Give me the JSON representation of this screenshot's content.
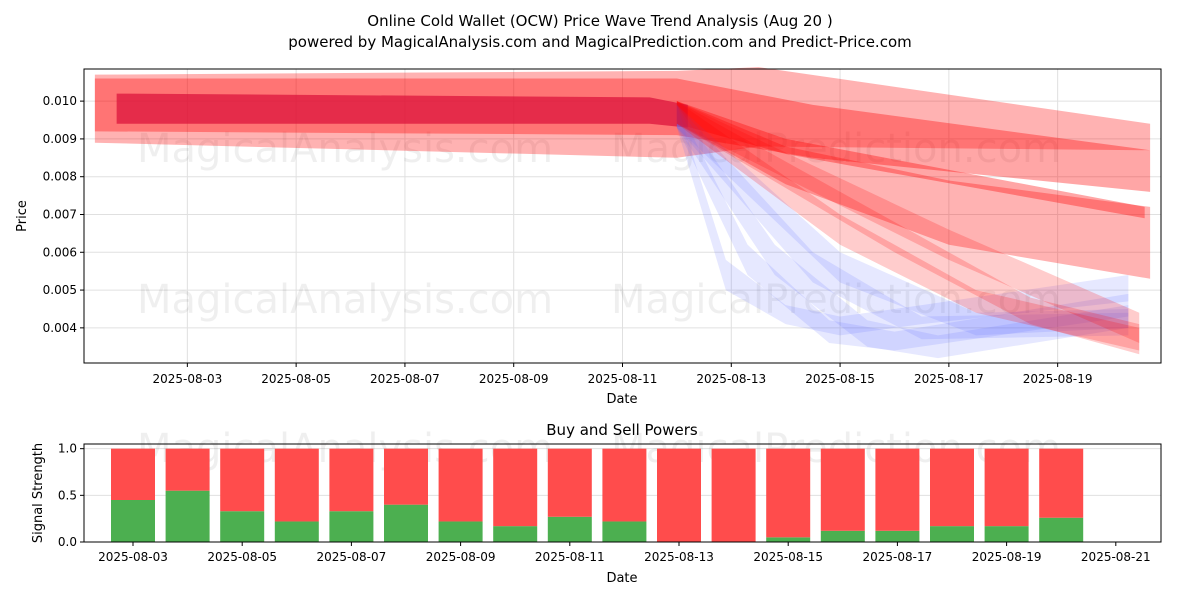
{
  "chart_data": [
    {
      "type": "area",
      "title": "Online Cold Wallet (OCW) Price Wave Trend Analysis (Aug 20 )",
      "subtitle": "powered by MagicalAnalysis.com and MagicalPrediction.com and Predict-Price.com",
      "xlabel": "Date",
      "ylabel": "Price",
      "xlim_day_of_aug": [
        1.1,
        20.9
      ],
      "ylim": [
        0.00307,
        0.01085
      ],
      "xticks": [
        "2025-08-03",
        "2025-08-05",
        "2025-08-07",
        "2025-08-09",
        "2025-08-11",
        "2025-08-13",
        "2025-08-15",
        "2025-08-17",
        "2025-08-19"
      ],
      "yticks": [
        "0.004",
        "0.005",
        "0.006",
        "0.007",
        "0.008",
        "0.009",
        "0.010"
      ],
      "grid": true,
      "watermarks": [
        "MagicalAnalysis.com",
        "MagicalPrediction.com"
      ],
      "bands_note": "each point is [day of Aug 2025, upper price, lower price]",
      "series": [
        {
          "name": "red-wide-top",
          "color": "#ff0000",
          "opacity": 0.3,
          "points": [
            [
              1.3,
              0.0107,
              0.0089
            ],
            [
              12,
              0.0108,
              0.0085
            ],
            [
              13.5,
              0.0109,
              0.0088
            ],
            [
              20.7,
              0.0094,
              0.0087
            ]
          ]
        },
        {
          "name": "red-mid",
          "color": "#ff0000",
          "opacity": 0.35,
          "points": [
            [
              1.3,
              0.0106,
              0.0092
            ],
            [
              12,
              0.0106,
              0.0091
            ],
            [
              14.5,
              0.0099,
              0.0085
            ],
            [
              20.7,
              0.0087,
              0.0076
            ]
          ]
        },
        {
          "name": "red-thin",
          "color": "#ff0000",
          "opacity": 0.35,
          "points": [
            [
              12,
              0.01,
              0.0094
            ],
            [
              14,
              0.009,
              0.0086
            ],
            [
              20.6,
              0.0072,
              0.0069
            ]
          ]
        },
        {
          "name": "red-wide-low",
          "color": "#ff0000",
          "opacity": 0.3,
          "points": [
            [
              12,
              0.01,
              0.0094
            ],
            [
              14,
              0.0088,
              0.0078
            ],
            [
              17,
              0.0079,
              0.0062
            ],
            [
              20.7,
              0.0072,
              0.0053
            ]
          ]
        },
        {
          "name": "red-core",
          "color": "#dc143c",
          "opacity": 0.75,
          "points": [
            [
              1.7,
              0.0102,
              0.0094
            ],
            [
              11.5,
              0.0101,
              0.0094
            ],
            [
              12.2,
              0.0099,
              0.0093
            ]
          ]
        },
        {
          "name": "blue-1",
          "color": "#5a64ff",
          "opacity": 0.15,
          "points": [
            [
              12,
              0.0099,
              0.0093
            ],
            [
              12.9,
              0.0058,
              0.005
            ],
            [
              14,
              0.0046,
              0.0041
            ],
            [
              15,
              0.0043,
              0.0038
            ],
            [
              16.5,
              0.0046,
              0.0041
            ],
            [
              20.3,
              0.0054,
              0.0047
            ]
          ]
        },
        {
          "name": "blue-2",
          "color": "#5a64ff",
          "opacity": 0.15,
          "points": [
            [
              12,
              0.0099,
              0.0093
            ],
            [
              13.3,
              0.0062,
              0.0054
            ],
            [
              14.8,
              0.0042,
              0.0036
            ],
            [
              16,
              0.0039,
              0.0034
            ],
            [
              20.3,
              0.0049,
              0.0043
            ]
          ]
        },
        {
          "name": "blue-3",
          "color": "#5a64ff",
          "opacity": 0.15,
          "points": [
            [
              12,
              0.0099,
              0.0093
            ],
            [
              13.8,
              0.0062,
              0.0054
            ],
            [
              15.5,
              0.0042,
              0.0035
            ],
            [
              16.8,
              0.0038,
              0.0032
            ],
            [
              20.3,
              0.0046,
              0.004
            ]
          ]
        },
        {
          "name": "blue-4",
          "color": "#5a64ff",
          "opacity": 0.15,
          "points": [
            [
              12,
              0.0099,
              0.0093
            ],
            [
              14.5,
              0.006,
              0.0052
            ],
            [
              16.5,
              0.0043,
              0.0037
            ],
            [
              20.3,
              0.0044,
              0.0038
            ]
          ]
        },
        {
          "name": "blue-5",
          "color": "#5a64ff",
          "opacity": 0.15,
          "points": [
            [
              12,
              0.0099,
              0.0093
            ],
            [
              15,
              0.006,
              0.0052
            ],
            [
              17.5,
              0.0044,
              0.0038
            ],
            [
              20.3,
              0.0045,
              0.004
            ]
          ]
        },
        {
          "name": "red-fan-1",
          "color": "#ff0000",
          "opacity": 0.2,
          "points": [
            [
              12,
              0.01,
              0.0094
            ],
            [
              15,
              0.007,
              0.0062
            ],
            [
              17.5,
              0.005,
              0.0044
            ],
            [
              20.5,
              0.004,
              0.0034
            ]
          ]
        },
        {
          "name": "red-fan-2",
          "color": "#ff0000",
          "opacity": 0.2,
          "points": [
            [
              12,
              0.01,
              0.0094
            ],
            [
              16,
              0.0068,
              0.006
            ],
            [
              18.5,
              0.0048,
              0.0041
            ],
            [
              20.5,
              0.0041,
              0.0033
            ]
          ]
        },
        {
          "name": "red-fan-3",
          "color": "#ff0000",
          "opacity": 0.2,
          "points": [
            [
              12,
              0.01,
              0.0094
            ],
            [
              17,
              0.0066,
              0.0058
            ],
            [
              20.5,
              0.0044,
              0.0036
            ]
          ]
        }
      ]
    },
    {
      "type": "bar",
      "title": "Buy and Sell Powers",
      "xlabel": "Date",
      "ylabel": "Signal Strength",
      "ylim": [
        0,
        1.05
      ],
      "yticks": [
        "0.0",
        "0.5",
        "1.0"
      ],
      "xticks": [
        "2025-08-03",
        "2025-08-05",
        "2025-08-07",
        "2025-08-09",
        "2025-08-11",
        "2025-08-13",
        "2025-08-15",
        "2025-08-17",
        "2025-08-19",
        "2025-08-21"
      ],
      "categories_day_of_aug": [
        3,
        4,
        5,
        6,
        7,
        8,
        9,
        10,
        11,
        12,
        13,
        14,
        15,
        16,
        17,
        18,
        19,
        20
      ],
      "series": [
        {
          "name": "Buy",
          "color": "#4caf50",
          "values": [
            0.45,
            0.55,
            0.33,
            0.22,
            0.33,
            0.4,
            0.22,
            0.17,
            0.27,
            0.22,
            0.0,
            0.0,
            0.05,
            0.12,
            0.12,
            0.17,
            0.17,
            0.26
          ]
        },
        {
          "name": "Sell",
          "color": "#ff4c4c",
          "values": [
            0.55,
            0.45,
            0.67,
            0.78,
            0.67,
            0.6,
            0.78,
            0.83,
            0.73,
            0.78,
            1.0,
            1.0,
            0.95,
            0.88,
            0.88,
            0.83,
            0.83,
            0.74
          ]
        }
      ]
    }
  ]
}
